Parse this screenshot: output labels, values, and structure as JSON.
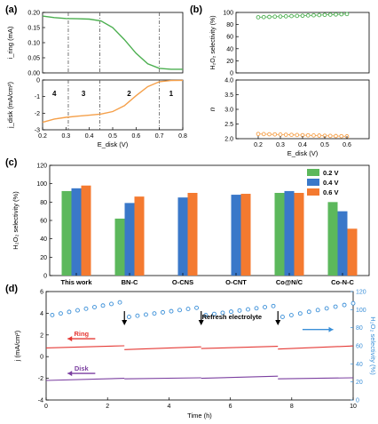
{
  "chart_data": [
    {
      "panel": "(a)",
      "type": "line",
      "subplots": [
        {
          "ylabel": "i_ring (mA)",
          "ylim": [
            0.0,
            0.2
          ],
          "yticks": [
            "0.00",
            "0.05",
            "0.10",
            "0.15",
            "0.20"
          ],
          "series": [
            {
              "color": "#4caf50",
              "x": [
                0.2,
                0.25,
                0.3,
                0.35,
                0.4,
                0.45,
                0.5,
                0.55,
                0.6,
                0.65,
                0.7,
                0.75,
                0.8
              ],
              "y": [
                0.188,
                0.183,
                0.18,
                0.179,
                0.178,
                0.172,
                0.15,
                0.11,
                0.065,
                0.03,
                0.015,
                0.012,
                0.012
              ]
            }
          ]
        },
        {
          "ylabel": "j_disk (mA/cm²)",
          "ylim": [
            -3,
            0
          ],
          "yticks": [
            "-3",
            "-2",
            "-1",
            "0"
          ],
          "series": [
            {
              "color": "#f5a04a",
              "x": [
                0.2,
                0.25,
                0.3,
                0.35,
                0.4,
                0.45,
                0.5,
                0.55,
                0.6,
                0.65,
                0.7,
                0.75,
                0.8
              ],
              "y": [
                -2.55,
                -2.35,
                -2.25,
                -2.18,
                -2.12,
                -2.05,
                -1.9,
                -1.55,
                -0.95,
                -0.4,
                -0.1,
                -0.03,
                -0.02
              ]
            }
          ]
        }
      ],
      "xlabel": "E_disk (V)",
      "xlim": [
        0.2,
        0.8
      ],
      "xticks": [
        "0.2",
        "0.3",
        "0.4",
        "0.5",
        "0.6",
        "0.7",
        "0.8"
      ],
      "vlines": [
        0.31,
        0.445,
        0.7
      ],
      "region_labels": [
        {
          "text": "4",
          "x": 0.25
        },
        {
          "text": "3",
          "x": 0.375
        },
        {
          "text": "2",
          "x": 0.57
        },
        {
          "text": "1",
          "x": 0.75
        }
      ]
    },
    {
      "panel": "(b)",
      "type": "scatter",
      "subplots": [
        {
          "ylabel": "H₂O₂ selectivity (%)",
          "ylim": [
            0,
            100
          ],
          "yticks": [
            "0",
            "20",
            "40",
            "60",
            "80",
            "100"
          ],
          "series": [
            {
              "color": "#4caf50",
              "x": [
                0.2,
                0.225,
                0.25,
                0.275,
                0.3,
                0.325,
                0.35,
                0.375,
                0.4,
                0.425,
                0.45,
                0.475,
                0.5,
                0.525,
                0.55,
                0.575,
                0.6
              ],
              "y": [
                92,
                92.3,
                92.6,
                93,
                93.3,
                93.6,
                94,
                94.3,
                94.6,
                95,
                95.3,
                95.6,
                96,
                96.3,
                96.6,
                97,
                97.3
              ]
            }
          ]
        },
        {
          "ylabel": "n",
          "ylim": [
            2.0,
            4.0
          ],
          "yticks": [
            "2.0",
            "2.5",
            "3.0",
            "3.5",
            "4.0"
          ],
          "series": [
            {
              "color": "#f5a04a",
              "x": [
                0.2,
                0.225,
                0.25,
                0.275,
                0.3,
                0.325,
                0.35,
                0.375,
                0.4,
                0.425,
                0.45,
                0.475,
                0.5,
                0.525,
                0.55,
                0.575,
                0.6
              ],
              "y": [
                2.16,
                2.155,
                2.15,
                2.145,
                2.14,
                2.135,
                2.13,
                2.125,
                2.12,
                2.115,
                2.11,
                2.105,
                2.1,
                2.095,
                2.09,
                2.085,
                2.08
              ]
            }
          ]
        }
      ],
      "xlabel": "E_disk (V)",
      "xlim": [
        0.1,
        0.7
      ],
      "xticks": [
        "0.2",
        "0.3",
        "0.4",
        "0.5",
        "0.6"
      ]
    },
    {
      "panel": "(c)",
      "type": "bar",
      "ylabel": "H₂O₂ selectivity (%)",
      "ylim": [
        0,
        120
      ],
      "yticks": [
        "0",
        "20",
        "40",
        "60",
        "80",
        "100",
        "120"
      ],
      "categories": [
        "This work",
        "BN-C",
        "O-CNS",
        "O-CNT",
        "Co@N/C",
        "Co-N-C"
      ],
      "series": [
        {
          "name": "0.2 V",
          "color": "#5cb85c",
          "values": [
            92,
            62,
            null,
            null,
            90,
            80
          ]
        },
        {
          "name": "0.4 V",
          "color": "#3a78c9",
          "values": [
            95,
            79,
            85,
            88,
            92,
            70
          ]
        },
        {
          "name": "0.6 V",
          "color": "#f47a30",
          "values": [
            98,
            86,
            90,
            89,
            90,
            51
          ]
        }
      ],
      "legend_position": "top-right"
    },
    {
      "panel": "(d)",
      "type": "line",
      "xlabel": "Time (h)",
      "xlim": [
        0,
        10
      ],
      "xticks": [
        "0",
        "2",
        "4",
        "6",
        "8",
        "10"
      ],
      "ylabel": "j (mA/cm²)",
      "ylim": [
        -4,
        6
      ],
      "yticks": [
        "-4",
        "-2",
        "0",
        "2",
        "4",
        "6"
      ],
      "ylabel_right": "H₂O₂ selectivity (%)",
      "ylim_right": [
        0,
        120
      ],
      "yticks_right": [
        "0",
        "20",
        "40",
        "60",
        "80",
        "100",
        "120"
      ],
      "ring": {
        "label": "Ring",
        "color": "#e53935",
        "segments": [
          {
            "x": [
              0.0,
              2.55
            ],
            "y": [
              0.8,
              1.0
            ]
          },
          {
            "x": [
              2.55,
              5.05
            ],
            "y": [
              0.65,
              0.9
            ]
          },
          {
            "x": [
              5.05,
              7.55
            ],
            "y": [
              0.75,
              0.95
            ]
          },
          {
            "x": [
              7.55,
              10.0
            ],
            "y": [
              0.7,
              0.98
            ]
          }
        ]
      },
      "disk": {
        "label": "Disk",
        "color": "#7b3fa0",
        "segments": [
          {
            "x": [
              0.0,
              2.55
            ],
            "y": [
              -2.2,
              -2.0
            ]
          },
          {
            "x": [
              2.55,
              5.05
            ],
            "y": [
              -2.05,
              -1.95
            ]
          },
          {
            "x": [
              5.05,
              7.55
            ],
            "y": [
              -2.0,
              -1.8
            ]
          },
          {
            "x": [
              7.55,
              10.0
            ],
            "y": [
              -2.05,
              -1.95
            ]
          }
        ]
      },
      "selectivity": {
        "color": "#3a8fd8",
        "segments": [
          {
            "x": [
              0.2,
              2.4
            ],
            "y": [
              94,
              108
            ]
          },
          {
            "x": [
              2.7,
              4.9
            ],
            "y": [
              92,
              102
            ]
          },
          {
            "x": [
              5.2,
              7.4
            ],
            "y": [
              94,
              104
            ]
          },
          {
            "x": [
              7.7,
              10.0
            ],
            "y": [
              92,
              107
            ]
          }
        ],
        "points_per_segment": 9
      },
      "arrows_at": [
        2.55,
        5.05,
        7.55
      ],
      "annotation": "Refresh electrolyte"
    }
  ]
}
